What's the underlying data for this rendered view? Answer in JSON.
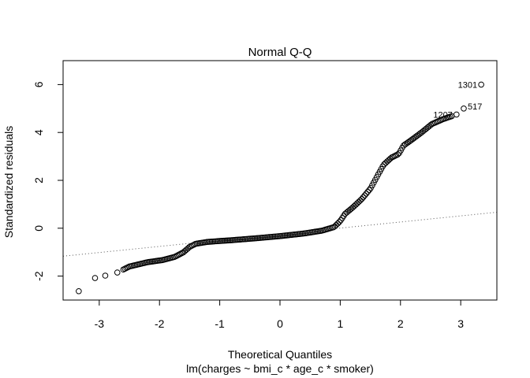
{
  "chart_data": {
    "type": "scatter",
    "title": "Normal Q-Q",
    "xlabel": "Theoretical Quantiles",
    "ylabel": "Standardized residuals",
    "subtitle": "lm(charges ~ bmi_c * age_c * smoker)",
    "xlim": [
      -3.6,
      3.6
    ],
    "ylim": [
      -3.0,
      7.0
    ],
    "x_ticks": [
      -3,
      -2,
      -1,
      0,
      1,
      2,
      3
    ],
    "y_ticks": [
      -2,
      0,
      2,
      4,
      6
    ],
    "reference_line": {
      "style": "dotted",
      "slope": 0.255,
      "intercept": -0.25
    },
    "labeled_points": [
      {
        "label": "1301",
        "x": 3.34,
        "y": 6.0
      },
      {
        "label": "517",
        "x": 3.05,
        "y": 5.0
      },
      {
        "label": "1207",
        "x": 2.93,
        "y": 4.75
      }
    ],
    "curve": [
      {
        "x": -3.34,
        "y": -2.63
      },
      {
        "x": -3.07,
        "y": -2.08
      },
      {
        "x": -2.9,
        "y": -1.98
      },
      {
        "x": -2.7,
        "y": -1.85
      },
      {
        "x": -2.5,
        "y": -1.6
      },
      {
        "x": -2.2,
        "y": -1.42
      },
      {
        "x": -1.95,
        "y": -1.33
      },
      {
        "x": -1.75,
        "y": -1.2
      },
      {
        "x": -1.6,
        "y": -1.0
      },
      {
        "x": -1.5,
        "y": -0.78
      },
      {
        "x": -1.4,
        "y": -0.65
      },
      {
        "x": -1.2,
        "y": -0.57
      },
      {
        "x": -0.8,
        "y": -0.5
      },
      {
        "x": -0.4,
        "y": -0.42
      },
      {
        "x": 0.0,
        "y": -0.33
      },
      {
        "x": 0.4,
        "y": -0.22
      },
      {
        "x": 0.7,
        "y": -0.1
      },
      {
        "x": 0.9,
        "y": 0.05
      },
      {
        "x": 1.0,
        "y": 0.3
      },
      {
        "x": 1.08,
        "y": 0.6
      },
      {
        "x": 1.2,
        "y": 0.85
      },
      {
        "x": 1.35,
        "y": 1.2
      },
      {
        "x": 1.5,
        "y": 1.65
      },
      {
        "x": 1.62,
        "y": 2.2
      },
      {
        "x": 1.72,
        "y": 2.65
      },
      {
        "x": 1.85,
        "y": 2.95
      },
      {
        "x": 1.97,
        "y": 3.1
      },
      {
        "x": 2.05,
        "y": 3.45
      },
      {
        "x": 2.2,
        "y": 3.72
      },
      {
        "x": 2.35,
        "y": 4.0
      },
      {
        "x": 2.52,
        "y": 4.35
      },
      {
        "x": 2.7,
        "y": 4.55
      },
      {
        "x": 2.85,
        "y": 4.68
      }
    ]
  }
}
